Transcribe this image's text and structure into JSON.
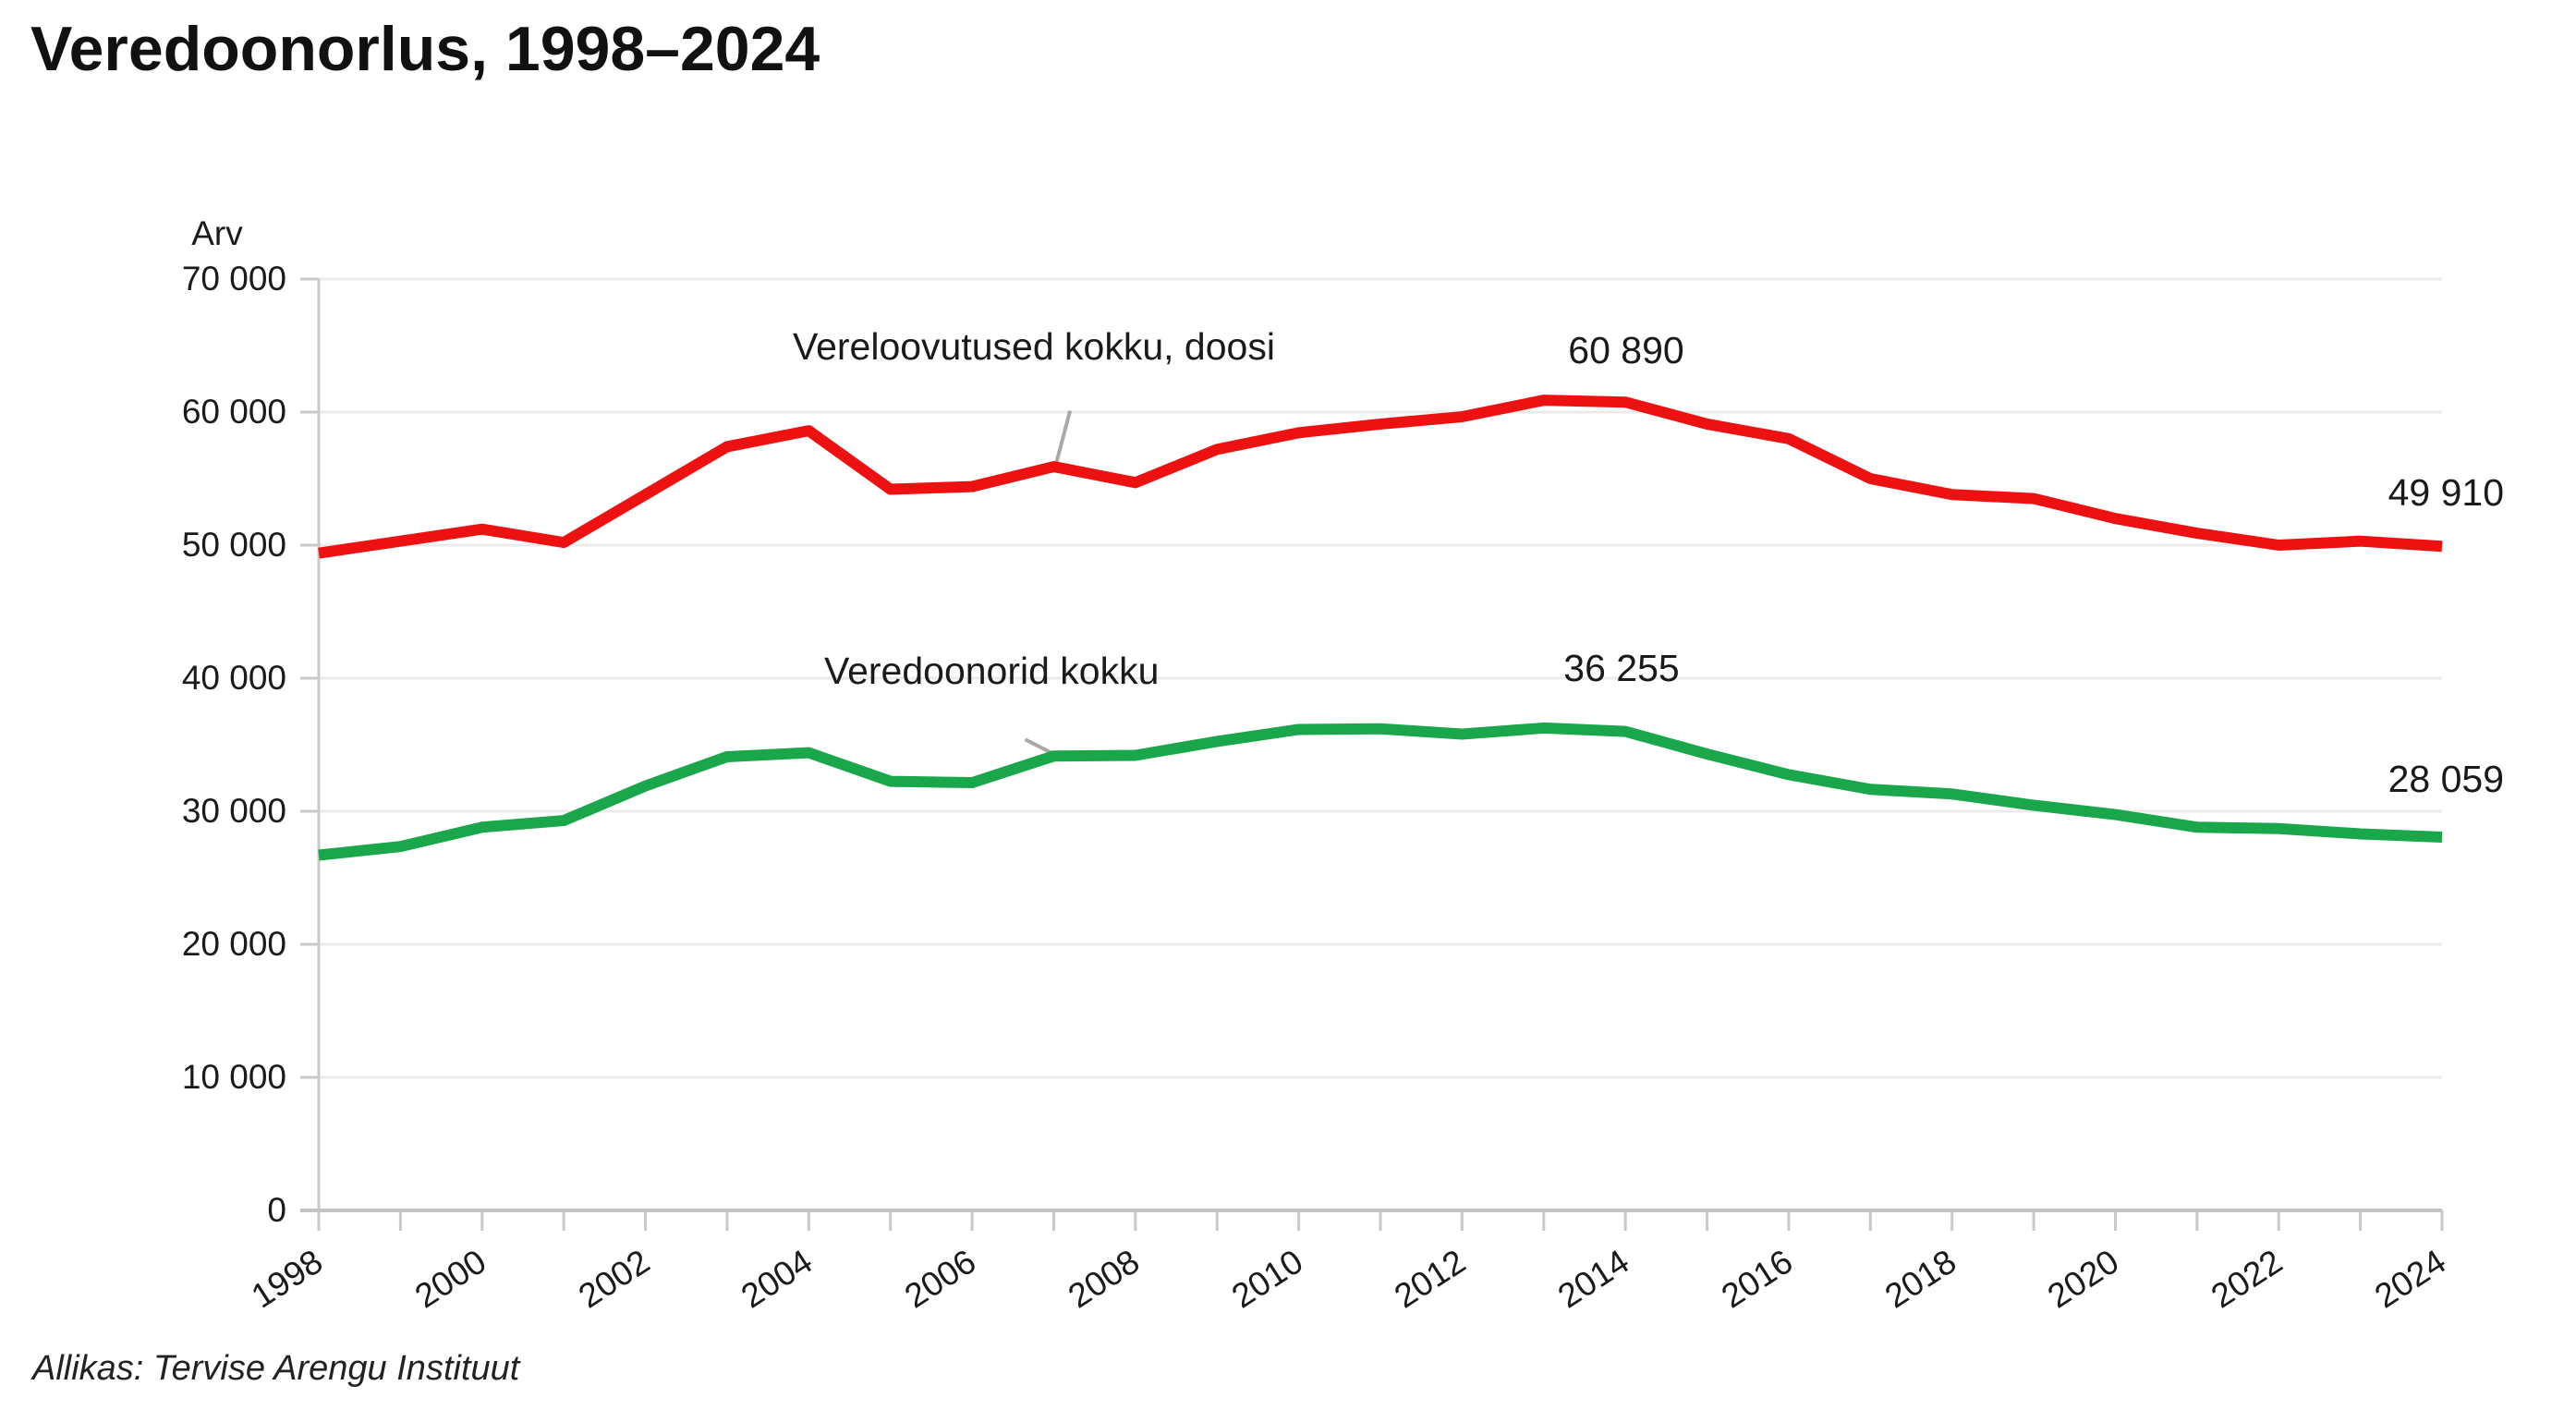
{
  "header": {
    "title": "Veredoonorlus, 1998–2024"
  },
  "footer": {
    "source": "Allikas: Tervise Arengu Instituut"
  },
  "colors": {
    "red_series": "#ee1111",
    "green_series": "#1aa64b",
    "grid": "#ebebeb",
    "axis": "#c9c9c9",
    "axis_line": "#c3c3c3",
    "leader": "#a9a9a9",
    "text": "#1a1a1a"
  },
  "chart_data": {
    "type": "line",
    "title": "Veredoonorlus, 1998–2024",
    "xlabel": "",
    "ylabel": "Arv",
    "xlim": [
      1998,
      2024
    ],
    "ylim": [
      0,
      70000
    ],
    "grid": "horizontal",
    "legend_position": "inline-labels",
    "x": [
      1998,
      1999,
      2000,
      2001,
      2002,
      2003,
      2004,
      2005,
      2006,
      2007,
      2008,
      2009,
      2010,
      2011,
      2012,
      2013,
      2014,
      2015,
      2016,
      2017,
      2018,
      2019,
      2020,
      2021,
      2022,
      2023,
      2024
    ],
    "x_tick_labels": [
      "1998",
      "2000",
      "2002",
      "2004",
      "2006",
      "2008",
      "2010",
      "2012",
      "2014",
      "2016",
      "2018",
      "2020",
      "2022",
      "2024"
    ],
    "y_ticks": [
      0,
      10000,
      20000,
      30000,
      40000,
      50000,
      60000,
      70000
    ],
    "y_tick_labels": [
      "0",
      "10 000",
      "20 000",
      "30 000",
      "40 000",
      "50 000",
      "60 000",
      "70 000"
    ],
    "series": [
      {
        "name": "Vereloovutused kokku, doosi",
        "color": "#ee1111",
        "values": [
          49400,
          50300,
          51200,
          50200,
          53800,
          57400,
          58600,
          54200,
          54400,
          55900,
          54700,
          57200,
          58450,
          59100,
          59650,
          60890,
          60750,
          59100,
          58000,
          55000,
          53800,
          53500,
          52000,
          50900,
          50000,
          50300,
          49910
        ]
      },
      {
        "name": "Veredoonorid kokku",
        "color": "#1aa64b",
        "values": [
          26700,
          27350,
          28800,
          29300,
          31900,
          34100,
          34400,
          32250,
          32150,
          34150,
          34200,
          35250,
          36150,
          36200,
          35800,
          36255,
          36000,
          34300,
          32750,
          31650,
          31300,
          30450,
          29750,
          28800,
          28700,
          28300,
          28059
        ]
      }
    ],
    "annotations": {
      "red_series_label": "Vereloovutused kokku, doosi",
      "green_series_label": "Veredoonorid kokku",
      "red_peak_label": "60 890",
      "green_peak_label": "36 255",
      "red_end_label": "49 910",
      "green_end_label": "28 059"
    },
    "leaders": [
      {
        "from_year": 2007.2,
        "from_value": 60100,
        "to_year": 2007.03,
        "to_value": 56150,
        "color": "#a9a9a9"
      },
      {
        "from_year": 2006.65,
        "from_value": 35400,
        "to_year": 2007.0,
        "to_value": 34300,
        "color": "#a9a9a9"
      }
    ]
  }
}
